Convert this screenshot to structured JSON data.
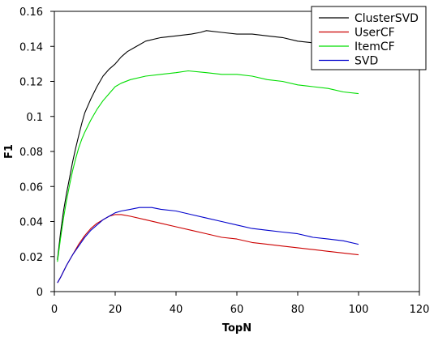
{
  "chart_data": {
    "type": "line",
    "title": "",
    "xlabel": "TopN",
    "ylabel": "F1",
    "xlim": [
      0,
      120
    ],
    "ylim": [
      0,
      0.16
    ],
    "xticks": [
      0,
      20,
      40,
      60,
      80,
      100,
      120
    ],
    "yticks": [
      0,
      0.02,
      0.04,
      0.06,
      0.08,
      0.1,
      0.12,
      0.14,
      0.16
    ],
    "grid": false,
    "legend_position": "top-right",
    "series": [
      {
        "name": "ClusterSVD",
        "color": "#000000",
        "points": [
          [
            1,
            0.018
          ],
          [
            2,
            0.033
          ],
          [
            3,
            0.046
          ],
          [
            4,
            0.056
          ],
          [
            5,
            0.065
          ],
          [
            6,
            0.074
          ],
          [
            7,
            0.082
          ],
          [
            8,
            0.089
          ],
          [
            9,
            0.096
          ],
          [
            10,
            0.102
          ],
          [
            12,
            0.11
          ],
          [
            14,
            0.117
          ],
          [
            16,
            0.123
          ],
          [
            18,
            0.127
          ],
          [
            20,
            0.13
          ],
          [
            22,
            0.134
          ],
          [
            24,
            0.137
          ],
          [
            26,
            0.139
          ],
          [
            28,
            0.141
          ],
          [
            30,
            0.143
          ],
          [
            35,
            0.145
          ],
          [
            40,
            0.146
          ],
          [
            45,
            0.147
          ],
          [
            48,
            0.148
          ],
          [
            50,
            0.149
          ],
          [
            55,
            0.148
          ],
          [
            60,
            0.147
          ],
          [
            65,
            0.147
          ],
          [
            70,
            0.146
          ],
          [
            75,
            0.145
          ],
          [
            80,
            0.143
          ],
          [
            85,
            0.142
          ],
          [
            90,
            0.14
          ],
          [
            95,
            0.139
          ],
          [
            100,
            0.138
          ]
        ]
      },
      {
        "name": "UserCF",
        "color": "#cc0000",
        "points": [
          [
            1,
            0.005
          ],
          [
            2,
            0.008
          ],
          [
            4,
            0.015
          ],
          [
            6,
            0.021
          ],
          [
            8,
            0.027
          ],
          [
            10,
            0.032
          ],
          [
            12,
            0.036
          ],
          [
            14,
            0.039
          ],
          [
            16,
            0.041
          ],
          [
            18,
            0.043
          ],
          [
            20,
            0.044
          ],
          [
            22,
            0.044
          ],
          [
            25,
            0.043
          ],
          [
            30,
            0.041
          ],
          [
            35,
            0.039
          ],
          [
            40,
            0.037
          ],
          [
            45,
            0.035
          ],
          [
            50,
            0.033
          ],
          [
            55,
            0.031
          ],
          [
            60,
            0.03
          ],
          [
            65,
            0.028
          ],
          [
            70,
            0.027
          ],
          [
            75,
            0.026
          ],
          [
            80,
            0.025
          ],
          [
            85,
            0.024
          ],
          [
            90,
            0.023
          ],
          [
            95,
            0.022
          ],
          [
            100,
            0.021
          ]
        ]
      },
      {
        "name": "ItemCF",
        "color": "#00dd00",
        "points": [
          [
            1,
            0.017
          ],
          [
            2,
            0.03
          ],
          [
            3,
            0.042
          ],
          [
            4,
            0.052
          ],
          [
            5,
            0.061
          ],
          [
            6,
            0.069
          ],
          [
            7,
            0.076
          ],
          [
            8,
            0.082
          ],
          [
            9,
            0.087
          ],
          [
            10,
            0.091
          ],
          [
            12,
            0.098
          ],
          [
            14,
            0.104
          ],
          [
            16,
            0.109
          ],
          [
            18,
            0.113
          ],
          [
            20,
            0.117
          ],
          [
            22,
            0.119
          ],
          [
            25,
            0.121
          ],
          [
            30,
            0.123
          ],
          [
            35,
            0.124
          ],
          [
            40,
            0.125
          ],
          [
            44,
            0.126
          ],
          [
            50,
            0.125
          ],
          [
            55,
            0.124
          ],
          [
            60,
            0.124
          ],
          [
            65,
            0.123
          ],
          [
            70,
            0.121
          ],
          [
            75,
            0.12
          ],
          [
            80,
            0.118
          ],
          [
            85,
            0.117
          ],
          [
            90,
            0.116
          ],
          [
            95,
            0.114
          ],
          [
            100,
            0.113
          ]
        ]
      },
      {
        "name": "SVD",
        "color": "#0000cc",
        "points": [
          [
            1,
            0.005
          ],
          [
            2,
            0.008
          ],
          [
            4,
            0.015
          ],
          [
            6,
            0.021
          ],
          [
            8,
            0.026
          ],
          [
            10,
            0.031
          ],
          [
            12,
            0.035
          ],
          [
            14,
            0.038
          ],
          [
            16,
            0.041
          ],
          [
            18,
            0.043
          ],
          [
            20,
            0.045
          ],
          [
            22,
            0.046
          ],
          [
            25,
            0.047
          ],
          [
            28,
            0.048
          ],
          [
            32,
            0.048
          ],
          [
            35,
            0.047
          ],
          [
            40,
            0.046
          ],
          [
            45,
            0.044
          ],
          [
            50,
            0.042
          ],
          [
            55,
            0.04
          ],
          [
            60,
            0.038
          ],
          [
            65,
            0.036
          ],
          [
            70,
            0.035
          ],
          [
            75,
            0.034
          ],
          [
            80,
            0.033
          ],
          [
            85,
            0.031
          ],
          [
            90,
            0.03
          ],
          [
            95,
            0.029
          ],
          [
            100,
            0.027
          ]
        ]
      }
    ]
  }
}
